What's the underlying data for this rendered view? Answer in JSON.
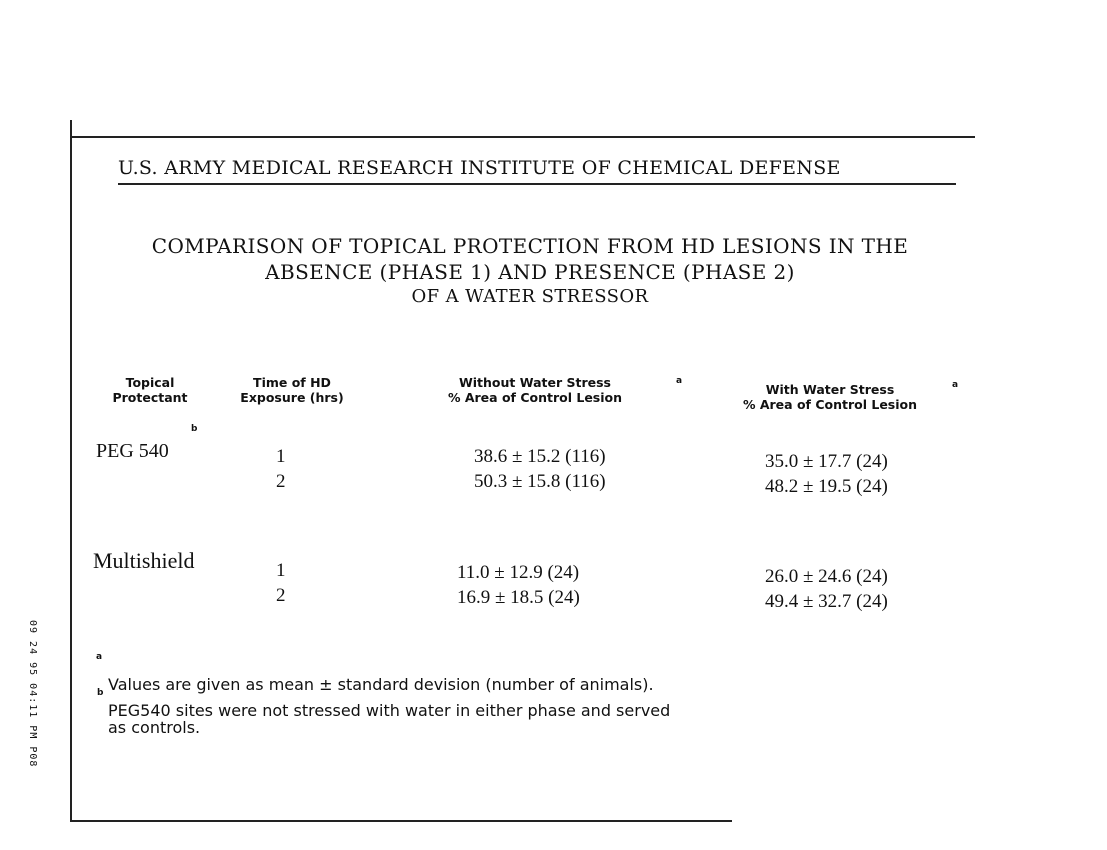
{
  "fax_header": "09 24 95   04:11 PM   P08",
  "institute": "U.S. ARMY MEDICAL RESEARCH INSTITUTE OF CHEMICAL DEFENSE",
  "title": [
    "COMPARISON OF TOPICAL PROTECTION FROM HD LESIONS IN THE",
    "ABSENCE (PHASE 1) AND PRESENCE (PHASE 2)",
    "OF A WATER STRESSOR"
  ],
  "columns": {
    "protectant": [
      "Topical",
      "Protectant"
    ],
    "time": [
      "Time of HD",
      "Exposure (hrs)"
    ],
    "without": [
      "Without Water Stress",
      "% Area of Control Lesion"
    ],
    "with": [
      "With Water Stress",
      "% Area of Control Lesion"
    ],
    "note_mark": "a"
  },
  "rows": [
    {
      "protectant": "PEG 540",
      "mark": "b",
      "entries": [
        {
          "time": "1",
          "without": "38.6 ± 15.2 (116)",
          "with": "35.0 ± 17.7 (24)"
        },
        {
          "time": "2",
          "without": "50.3 ± 15.8 (116)",
          "with": "48.2 ± 19.5 (24)"
        }
      ]
    },
    {
      "protectant": "Multishield",
      "mark": "",
      "entries": [
        {
          "time": "1",
          "without": "11.0 ± 12.9 (24)",
          "with": "26.0 ± 24.6 (24)"
        },
        {
          "time": "2",
          "without": "16.9 ± 18.5 (24)",
          "with": "49.4 ± 32.7 (24)"
        }
      ]
    }
  ],
  "footnotes": [
    {
      "mark": "a",
      "text": "Values are given as mean ± standard devision (number of animals)."
    },
    {
      "mark": "b",
      "text": "PEG540 sites were not stressed with water in either phase and served",
      "text2": "as controls."
    }
  ]
}
